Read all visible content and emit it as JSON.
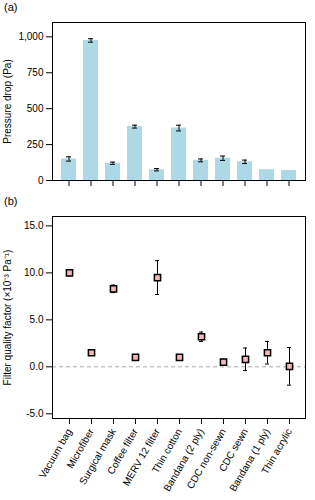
{
  "chart_data": [
    {
      "type": "bar",
      "title": "(a)",
      "categories": [
        "Vacuum bag",
        "Microfiber",
        "Surgical mask",
        "Coffee filter",
        "MERV 12 filter",
        "Thin cotton",
        "Bandana (2 ply)",
        "CDC non-sewn",
        "CDC sewn",
        "Bandana (1 ply)",
        "Thin acrylic"
      ],
      "values": [
        150,
        975,
        120,
        375,
        75,
        365,
        140,
        155,
        130,
        75,
        70
      ],
      "errors": [
        15,
        12,
        8,
        10,
        8,
        20,
        10,
        15,
        12,
        0,
        0
      ],
      "color": "#add8e6",
      "ylabel": "Pressure drop (Pa)",
      "ylim": [
        0,
        1100
      ],
      "yticks": [
        0,
        250,
        500,
        750,
        {
          "value": 1000,
          "label": "1,000"
        }
      ],
      "tick_labels": "y"
    },
    {
      "type": "scatter",
      "title": "(b)",
      "categories": [
        "Vacuum bag",
        "Microfiber",
        "Surgical mask",
        "Coffee filter",
        "MERV 12 filter",
        "Thin cotton",
        "Bandana (2 ply)",
        "CDC non-sewn",
        "CDC sewn",
        "Bandana (1 ply)",
        "Thin acrylic"
      ],
      "values": [
        10.0,
        1.5,
        8.3,
        1.0,
        9.5,
        1.0,
        3.2,
        0.5,
        0.8,
        1.5,
        0.05
      ],
      "errors": [
        0.3,
        0.3,
        0.4,
        0.2,
        1.8,
        0.3,
        0.5,
        0.3,
        1.2,
        1.2,
        2.0
      ],
      "color": "#f4b8b8",
      "marker": "square",
      "ylabel": "Filter quality factor (×10⁻³ Pa⁻¹)",
      "ylim": [
        -5.5,
        16.0
      ],
      "yticks": [
        {
          "value": -5.0,
          "label": "-5.0"
        },
        {
          "value": 0.0,
          "label": "0.0"
        },
        {
          "value": 5.0,
          "label": "5.0"
        },
        {
          "value": 10.0,
          "label": "10.0"
        },
        {
          "value": 15.0,
          "label": "15.0"
        }
      ],
      "reference_line": {
        "y": 0,
        "color": "#aaaaaa",
        "line_style": "dashed"
      }
    }
  ]
}
